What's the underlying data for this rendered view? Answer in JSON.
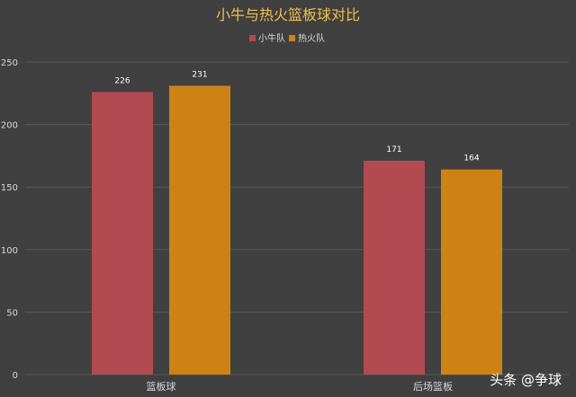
{
  "chart_data": {
    "type": "bar",
    "title": "小牛与热火篮板球对比",
    "categories": [
      "篮板球",
      "后场篮板"
    ],
    "series": [
      {
        "name": "小牛队",
        "values": [
          226,
          171
        ],
        "color": "#b24a52"
      },
      {
        "name": "热火队",
        "values": [
          231,
          164
        ],
        "color": "#cc8314"
      }
    ],
    "ylim": [
      0,
      250
    ],
    "yticks": [
      0,
      50,
      100,
      150,
      200,
      250
    ],
    "xlabel": "",
    "ylabel": "",
    "grid": true,
    "legend_position": "top"
  },
  "watermark": "头条 @争球",
  "colors": {
    "background": "#404040",
    "grid": "#595959",
    "title": "#f2c14e"
  }
}
